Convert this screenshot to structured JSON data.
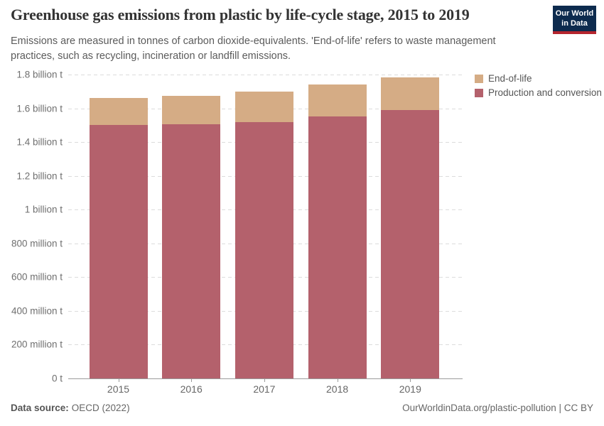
{
  "header": {
    "title": "Greenhouse gas emissions from plastic by life-cycle stage, 2015 to 2019",
    "subtitle": "Emissions are measured in tonnes of carbon dioxide-equivalents. 'End-of-life' refers to waste management practices, such as recycling, incineration or landfill emissions.",
    "logo": {
      "line1": "Our World",
      "line2": "in Data",
      "bg_color": "#0d2b4e",
      "stripe_color": "#b5252e"
    }
  },
  "legend": {
    "items": [
      {
        "label": "End-of-life",
        "color": "#d5ac85"
      },
      {
        "label": "Production and conversion",
        "color": "#b4616c"
      }
    ]
  },
  "chart_data": {
    "type": "bar",
    "stacked": true,
    "title": "Greenhouse gas emissions from plastic by life-cycle stage, 2015 to 2019",
    "unit": "tonnes of carbon dioxide-equivalents (values in million tonnes)",
    "categories": [
      "2015",
      "2016",
      "2017",
      "2018",
      "2019"
    ],
    "series": [
      {
        "name": "Production and conversion",
        "color": "#b4616c",
        "values": [
          1500,
          1505,
          1520,
          1550,
          1590
        ]
      },
      {
        "name": "End-of-life",
        "color": "#d5ac85",
        "values": [
          160,
          168,
          178,
          190,
          193
        ]
      }
    ],
    "totals": [
      1660,
      1673,
      1698,
      1740,
      1783
    ],
    "ylim": [
      0,
      1800
    ],
    "y_ticks": [
      {
        "value": 1800,
        "label": "1.8 billion t"
      },
      {
        "value": 1600,
        "label": "1.6 billion t"
      },
      {
        "value": 1400,
        "label": "1.4 billion t"
      },
      {
        "value": 1200,
        "label": "1.2 billion t"
      },
      {
        "value": 1000,
        "label": "1 billion t"
      },
      {
        "value": 800,
        "label": "800 million t"
      },
      {
        "value": 600,
        "label": "600 million t"
      },
      {
        "value": 400,
        "label": "400 million t"
      },
      {
        "value": 200,
        "label": "200 million t"
      },
      {
        "value": 0,
        "label": "0 t"
      }
    ],
    "grid": "horizontal-dashed",
    "legend_position": "top-right"
  },
  "footer": {
    "source_label": "Data source:",
    "source_value": "OECD (2022)",
    "credit": "OurWorldinData.org/plastic-pollution | CC BY"
  }
}
